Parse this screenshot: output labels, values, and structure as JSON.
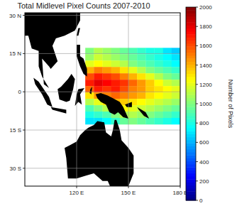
{
  "chart_data": {
    "type": "heatmap",
    "title": "Total Midlevel Pixel Counts 2007-2010",
    "x": [
      127.5,
      132.5,
      137.5,
      142.5,
      147.5,
      152.5,
      157.5,
      162.5,
      167.5,
      172.5,
      177.5
    ],
    "y": [
      16,
      13.5,
      11,
      8.5,
      6,
      3.5,
      1,
      -1.5,
      -4,
      -6.5,
      -9,
      -11.5
    ],
    "values": [
      [
        1000,
        1100,
        1050,
        1000,
        950,
        900,
        850,
        800,
        800,
        700,
        650
      ],
      [
        1050,
        1150,
        1100,
        1050,
        1000,
        950,
        900,
        850,
        800,
        750,
        700
      ],
      [
        1200,
        1250,
        1200,
        1150,
        1100,
        1000,
        950,
        900,
        850,
        800,
        750
      ],
      [
        1400,
        1500,
        1450,
        1400,
        1300,
        1200,
        1100,
        1000,
        950,
        900,
        850
      ],
      [
        1600,
        1700,
        1650,
        1600,
        1500,
        1400,
        1300,
        1200,
        1100,
        1000,
        950
      ],
      [
        1700,
        1800,
        1750,
        1700,
        1650,
        1550,
        1450,
        1350,
        1250,
        1150,
        1100
      ],
      [
        1550,
        1700,
        1650,
        1700,
        1600,
        1500,
        1450,
        1350,
        1300,
        1250,
        1200
      ],
      [
        1300,
        1450,
        1500,
        1550,
        1500,
        1450,
        1400,
        1300,
        1250,
        1200,
        1150
      ],
      [
        1100,
        1200,
        1300,
        1400,
        1350,
        1300,
        1250,
        1200,
        1150,
        1100,
        1050
      ],
      [
        900,
        1000,
        1100,
        1200,
        1250,
        1200,
        1150,
        1100,
        1050,
        1000,
        950
      ],
      [
        800,
        850,
        900,
        1000,
        1100,
        1100,
        1050,
        1000,
        950,
        900,
        850
      ],
      [
        700,
        700,
        750,
        850,
        950,
        1000,
        950,
        900,
        850,
        800,
        750
      ]
    ],
    "xlim": [
      90,
      180
    ],
    "xticks": [
      {
        "value": 120,
        "label": "120 E"
      },
      {
        "value": 150,
        "label": "150 E"
      },
      {
        "value": 180,
        "label": "180 E"
      }
    ],
    "ylim": [
      -37,
      31
    ],
    "yticks": [
      {
        "value": 30,
        "label": "30 N"
      },
      {
        "value": 15,
        "label": "15 N"
      },
      0,
      {
        "value": -15,
        "label": "15 S"
      },
      {
        "value": -30,
        "label": "30 S"
      }
    ],
    "grid": true,
    "color_range": [
      0,
      2000
    ],
    "color_ticks": [
      0,
      200,
      400,
      600,
      800,
      1000,
      1200,
      1400,
      1600,
      1800,
      2000
    ],
    "colorbar_label": "Number of Pixels"
  }
}
